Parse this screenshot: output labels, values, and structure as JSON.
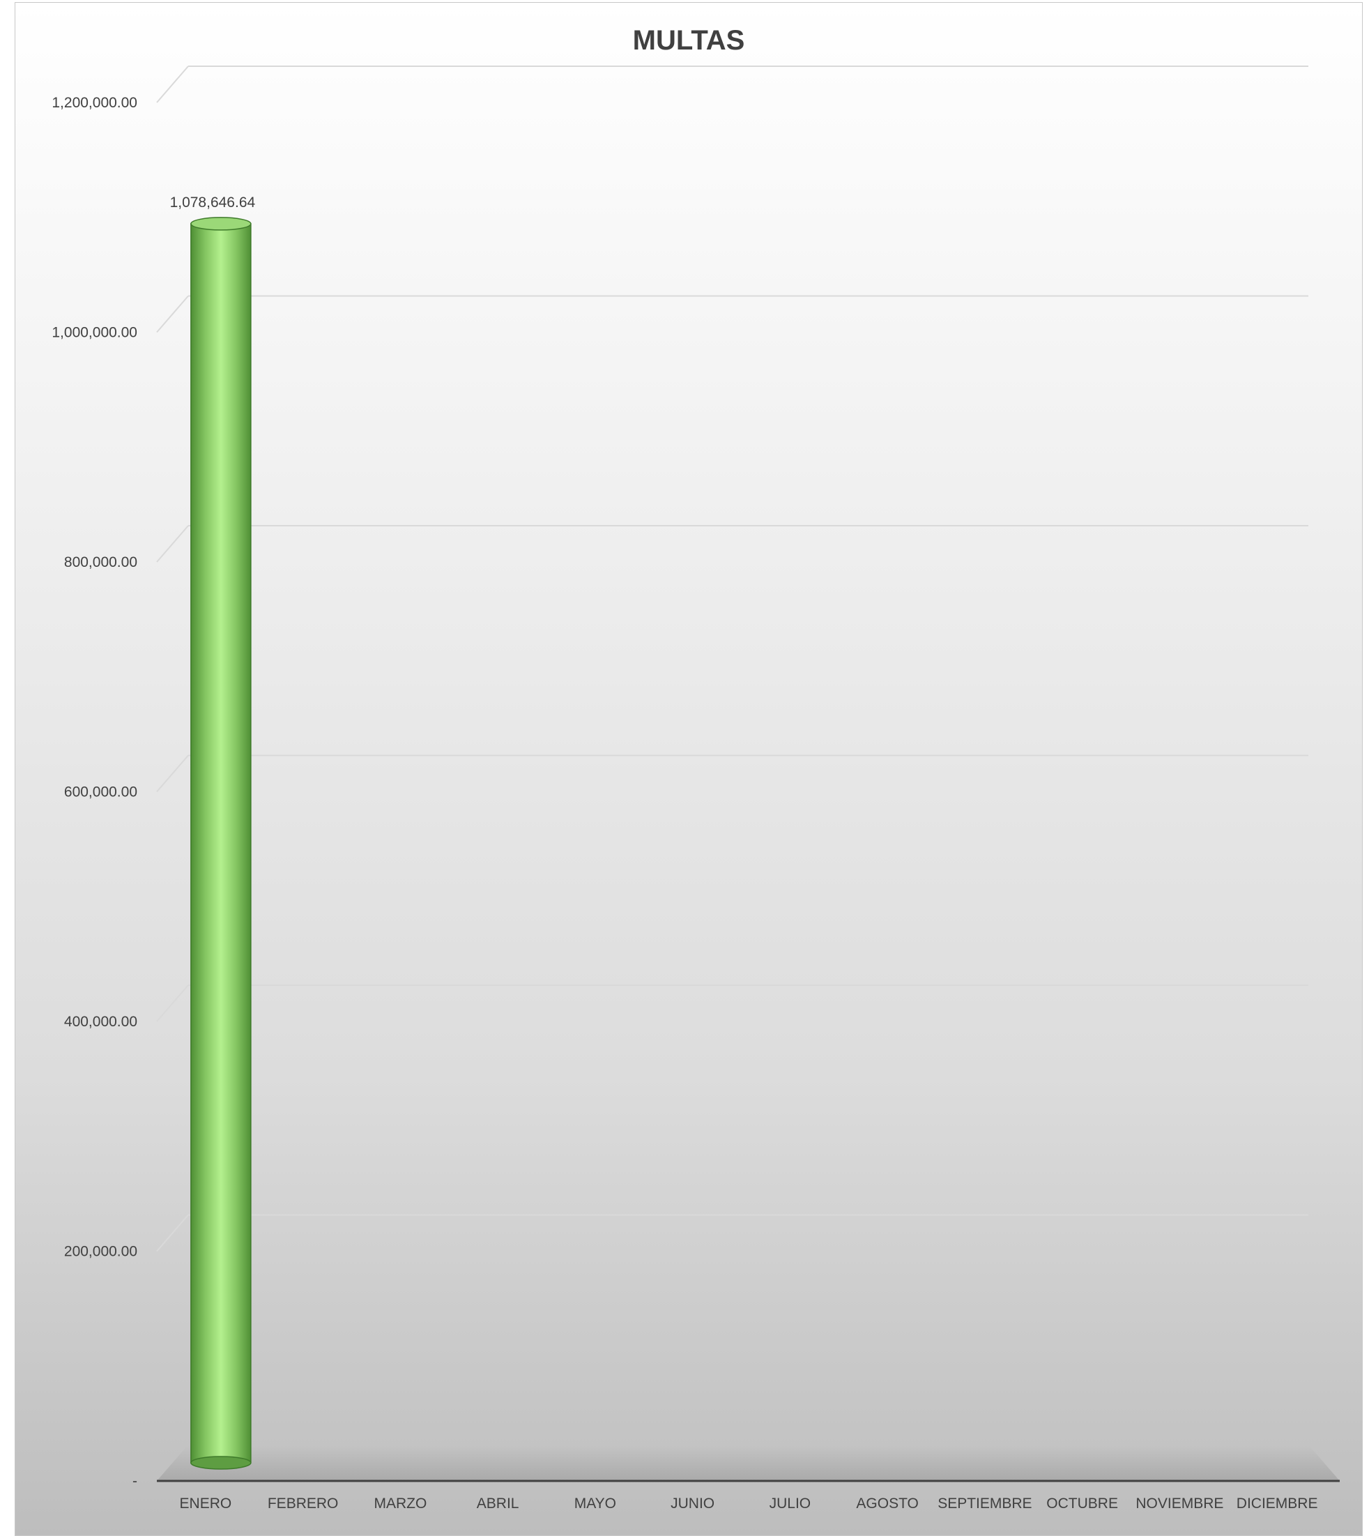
{
  "chart_data": {
    "type": "bar",
    "title": "MULTAS",
    "categories": [
      "ENERO",
      "FEBRERO",
      "MARZO",
      "ABRIL",
      "MAYO",
      "JUNIO",
      "JULIO",
      "AGOSTO",
      "SEPTIEMBRE",
      "OCTUBRE",
      "NOVIEMBRE",
      "DICIEMBRE"
    ],
    "values": [
      1078646.64,
      0,
      0,
      0,
      0,
      0,
      0,
      0,
      0,
      0,
      0,
      0
    ],
    "data_labels": [
      "1,078,646.64",
      "",
      "",
      "",
      "",
      "",
      "",
      "",
      "",
      "",
      "",
      ""
    ],
    "ylim": [
      0,
      1200000
    ],
    "y_ticks": [
      0,
      200000,
      400000,
      600000,
      800000,
      1000000,
      1200000
    ],
    "y_tick_labels": [
      "-",
      "200,000.00",
      "400,000.00",
      "600,000.00",
      "800,000.00",
      "1,000,000.00",
      "1,200,000.00"
    ],
    "grid": true,
    "legend": "none",
    "colors": {
      "bar": "#7cc05a",
      "bar_edge": "#3e7a2a",
      "bar_highlight": "#b4f08e",
      "floor": "#b0b0b0",
      "grid": "#d9d9d9",
      "axis": "#404040"
    }
  }
}
